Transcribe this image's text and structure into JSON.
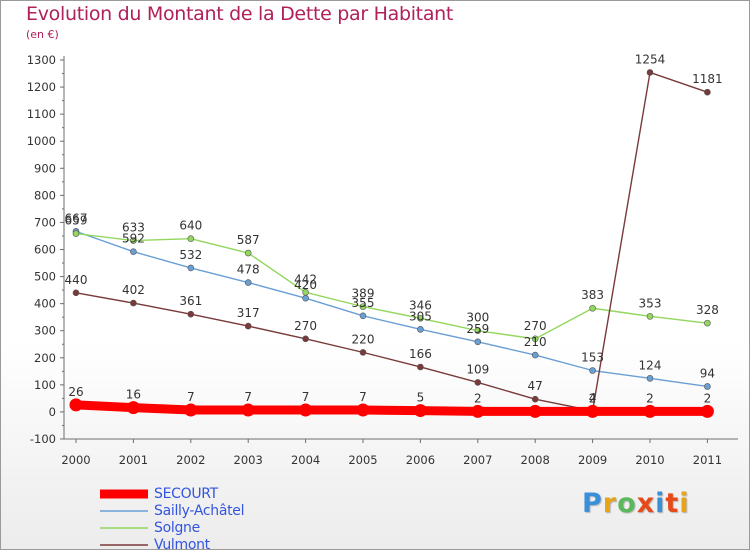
{
  "header": {
    "title": "Evolution du Montant de la Dette par Habitant",
    "subtitle": "(en €)"
  },
  "colors": {
    "title": "#b0205a",
    "legend_text": "#3355dd",
    "axis_text": "#333333",
    "axis": "#6d6d6d"
  },
  "logo": {
    "text": "Proxiti",
    "letter_colors": [
      "#3a8fd9",
      "#e8a317",
      "#5cb85c",
      "#e64a19",
      "#3a8fd9",
      "#e64a19",
      "#e8a317"
    ]
  },
  "chart_data": {
    "type": "line",
    "title": "Evolution du Montant de la Dette par Habitant",
    "subtitle": "(en €)",
    "x": [
      "2000",
      "2001",
      "2002",
      "2003",
      "2004",
      "2005",
      "2006",
      "2007",
      "2008",
      "2009",
      "2010",
      "2011"
    ],
    "ylim": [
      -100,
      1300
    ],
    "yticks": [
      -100,
      0,
      100,
      200,
      300,
      400,
      500,
      600,
      700,
      800,
      900,
      1000,
      1100,
      1200,
      1300
    ],
    "grid": false,
    "legend_position": "bottom-left",
    "series": [
      {
        "name": "SECOURT",
        "color": "#ff0000",
        "emphasis": true,
        "values": [
          26,
          16,
          7,
          7,
          7,
          7,
          5,
          2,
          2,
          2,
          2,
          2
        ],
        "labels": [
          "26",
          "16",
          "7",
          "7",
          "7",
          "7",
          "5",
          "2",
          "",
          "2",
          "2",
          "2"
        ]
      },
      {
        "name": "Sailly-Achâtel",
        "color": "#6a9fd4",
        "emphasis": false,
        "values": [
          667,
          592,
          532,
          478,
          420,
          355,
          305,
          259,
          210,
          153,
          124,
          94
        ],
        "labels": [
          "667",
          "592",
          "532",
          "478",
          "420",
          "355",
          "305",
          "259",
          "210",
          "153",
          "124",
          "94"
        ]
      },
      {
        "name": "Solgne",
        "color": "#93d75e",
        "emphasis": false,
        "values": [
          659,
          633,
          640,
          587,
          442,
          389,
          346,
          300,
          270,
          383,
          353,
          328
        ],
        "labels": [
          "659",
          "633",
          "640",
          "587",
          "442",
          "389",
          "346",
          "300",
          "270",
          "383",
          "353",
          "328"
        ]
      },
      {
        "name": "Vulmont",
        "color": "#7a3a3a",
        "emphasis": false,
        "values": [
          440,
          402,
          361,
          317,
          270,
          220,
          166,
          109,
          47,
          4,
          1254,
          1181
        ],
        "labels": [
          "440",
          "402",
          "361",
          "317",
          "270",
          "220",
          "166",
          "109",
          "47",
          "4",
          "1254",
          "1181"
        ]
      }
    ]
  }
}
